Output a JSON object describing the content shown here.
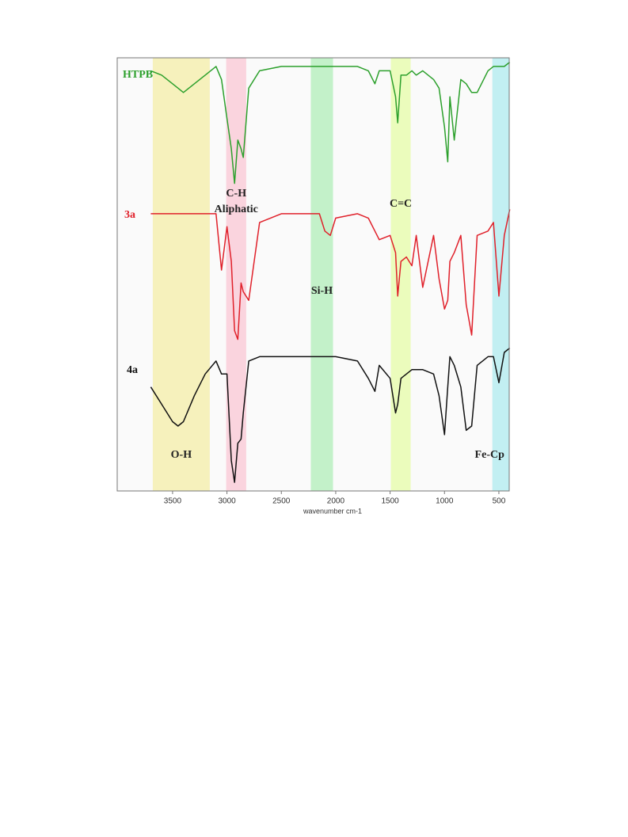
{
  "chart_data": {
    "type": "line",
    "x_label": "wavenumber cm-1",
    "xlim": [
      4009,
      405
    ],
    "ylim": [
      0,
      100
    ],
    "xticks": [
      3500,
      3000,
      2500,
      2000,
      1500,
      1000,
      500
    ],
    "x": [
      3700,
      3600,
      3500,
      3450,
      3400,
      3300,
      3200,
      3100,
      3050,
      3000,
      2960,
      2930,
      2900,
      2870,
      2850,
      2800,
      2700,
      2500,
      2300,
      2200,
      2150,
      2100,
      2050,
      2000,
      1800,
      1700,
      1640,
      1600,
      1500,
      1450,
      1430,
      1400,
      1350,
      1300,
      1260,
      1200,
      1100,
      1050,
      1000,
      970,
      950,
      910,
      850,
      800,
      750,
      700,
      600,
      550,
      500,
      450,
      400
    ],
    "series": [
      {
        "name": "HTPB",
        "color": "#2ca02c",
        "values": [
          97,
          96,
          94,
          93,
          92,
          94,
          96,
          98,
          95,
          86,
          79,
          71,
          81,
          79,
          77,
          93,
          97,
          98,
          98,
          98,
          98,
          98,
          98,
          98,
          98,
          97,
          94,
          97,
          97,
          91,
          85,
          96,
          96,
          97,
          96,
          97,
          95,
          93,
          84,
          76,
          91,
          81,
          95,
          94,
          92,
          92,
          97,
          98,
          98,
          98,
          99
        ]
      },
      {
        "name": "3a",
        "color": "#e0202a",
        "values": [
          64,
          64,
          64,
          64,
          64,
          64,
          64,
          64,
          51,
          61,
          53,
          37,
          35,
          48,
          46,
          44,
          62,
          64,
          64,
          64,
          64,
          60,
          59,
          63,
          64,
          63,
          60,
          58,
          59,
          55,
          45,
          53,
          54,
          52,
          59,
          47,
          59,
          49,
          42,
          44,
          53,
          55,
          59,
          43,
          36,
          59,
          60,
          62,
          45,
          59,
          65
        ]
      },
      {
        "name": "4a",
        "color": "#111111",
        "values": [
          24,
          20,
          16,
          15,
          16,
          22,
          27,
          30,
          27,
          27,
          7,
          2,
          11,
          12,
          18,
          30,
          31,
          31,
          31,
          31,
          31,
          31,
          31,
          31,
          30,
          26,
          23,
          29,
          26,
          18,
          20,
          26,
          27,
          28,
          28,
          28,
          27,
          22,
          13,
          24,
          31,
          29,
          24,
          14,
          15,
          29,
          31,
          31,
          25,
          32,
          33
        ]
      }
    ],
    "bands": [
      {
        "label": [
          "O-H"
        ],
        "range": [
          3682,
          3158
        ],
        "color": "#f5eeb0"
      },
      {
        "label": [
          "C-H",
          "Aliphatic"
        ],
        "range": [
          3007,
          2823
        ],
        "color": "#f9cdd8"
      },
      {
        "label": [
          "Si-H"
        ],
        "range": [
          2229,
          2025
        ],
        "color": "#b9eec0"
      },
      {
        "label": [
          "C=C"
        ],
        "range": [
          1493,
          1311
        ],
        "color": "#e8fcb0"
      },
      {
        "label": [
          "Fe-Cp"
        ],
        "range": [
          560,
          407
        ],
        "color": "#b7ecf0"
      }
    ]
  }
}
